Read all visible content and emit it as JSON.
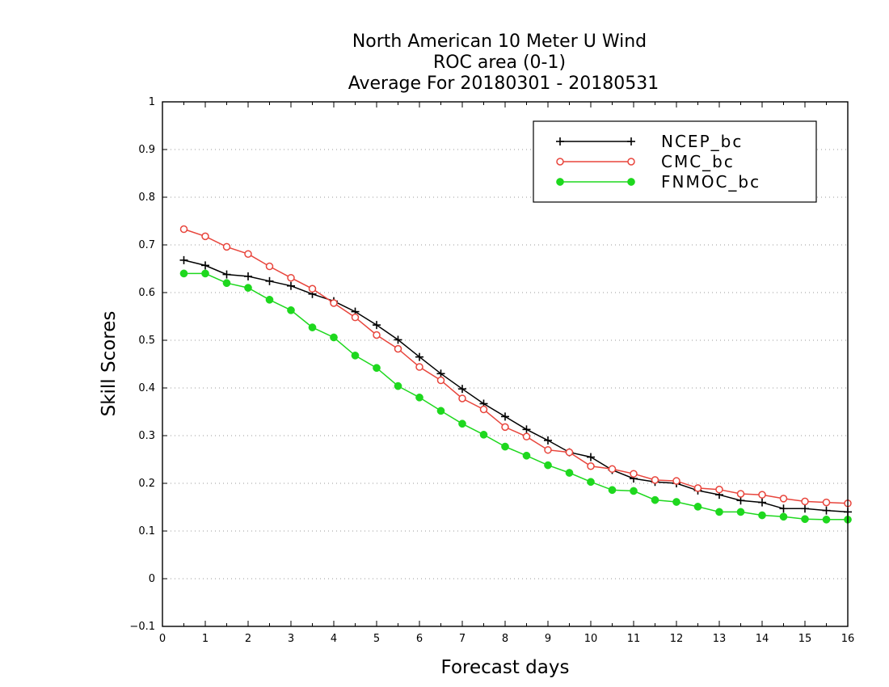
{
  "chart_data": {
    "type": "line",
    "title_lines": [
      "North American 10 Meter U Wind",
      "ROC area (0-1)",
      "Average For 20180301 - 20180531"
    ],
    "xlabel": "Forecast days",
    "ylabel": "Skill Scores",
    "xlim": [
      0,
      16
    ],
    "ylim": [
      -0.1,
      1
    ],
    "x_ticks": [
      "0",
      "1",
      "2",
      "3",
      "4",
      "5",
      "6",
      "7",
      "8",
      "9",
      "10",
      "11",
      "12",
      "13",
      "14",
      "15",
      "16"
    ],
    "y_ticks": [
      "−0.1",
      "0",
      "0.1",
      "0.2",
      "0.3",
      "0.4",
      "0.5",
      "0.6",
      "0.7",
      "0.8",
      "0.9",
      "1"
    ],
    "y_tick_values": [
      -0.1,
      0,
      0.1,
      0.2,
      0.3,
      0.4,
      0.5,
      0.6,
      0.7,
      0.8,
      0.9,
      1
    ],
    "grid": "horizontal dotted",
    "legend_position": "top-right",
    "x": [
      0.5,
      1,
      1.5,
      2,
      2.5,
      3,
      3.5,
      4,
      4.5,
      5,
      5.5,
      6,
      6.5,
      7,
      7.5,
      8,
      8.5,
      9,
      9.5,
      10,
      10.5,
      11,
      11.5,
      12,
      12.5,
      13,
      13.5,
      14,
      14.5,
      15,
      15.5,
      16
    ],
    "series": [
      {
        "name": "NCEP_bc",
        "color": "#000000",
        "marker": "plus",
        "values": [
          0.668,
          0.657,
          0.638,
          0.634,
          0.624,
          0.614,
          0.597,
          0.582,
          0.56,
          0.532,
          0.501,
          0.465,
          0.43,
          0.398,
          0.367,
          0.34,
          0.313,
          0.29,
          0.265,
          0.255,
          0.228,
          0.21,
          0.203,
          0.2,
          0.185,
          0.176,
          0.164,
          0.16,
          0.147,
          0.147,
          0.143,
          0.14
        ]
      },
      {
        "name": "CMC_bc",
        "color": "#e8453c",
        "marker": "open-circle",
        "values": [
          0.733,
          0.718,
          0.696,
          0.681,
          0.655,
          0.631,
          0.608,
          0.578,
          0.548,
          0.511,
          0.482,
          0.444,
          0.416,
          0.378,
          0.355,
          0.318,
          0.298,
          0.27,
          0.265,
          0.236,
          0.23,
          0.22,
          0.207,
          0.205,
          0.19,
          0.187,
          0.178,
          0.176,
          0.168,
          0.162,
          0.16,
          0.158
        ]
      },
      {
        "name": "FNMOC_bc",
        "color": "#1ed81e",
        "marker": "filled-circle",
        "values": [
          0.64,
          0.64,
          0.62,
          0.61,
          0.585,
          0.563,
          0.527,
          0.506,
          0.468,
          0.442,
          0.404,
          0.38,
          0.352,
          0.325,
          0.302,
          0.277,
          0.258,
          0.238,
          0.222,
          0.203,
          0.186,
          0.184,
          0.165,
          0.161,
          0.151,
          0.14,
          0.14,
          0.133,
          0.13,
          0.125,
          0.124,
          0.124
        ]
      }
    ]
  }
}
